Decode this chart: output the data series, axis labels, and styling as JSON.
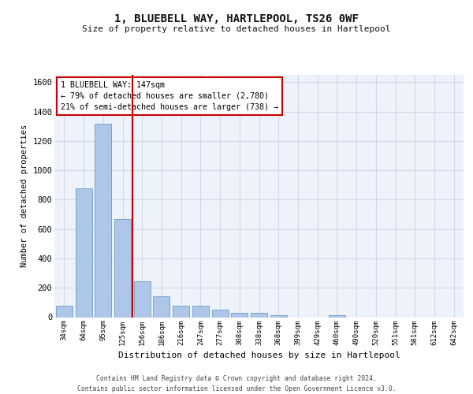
{
  "title_line1": "1, BLUEBELL WAY, HARTLEPOOL, TS26 0WF",
  "title_line2": "Size of property relative to detached houses in Hartlepool",
  "xlabel": "Distribution of detached houses by size in Hartlepool",
  "ylabel": "Number of detached properties",
  "categories": [
    "34sqm",
    "64sqm",
    "95sqm",
    "125sqm",
    "156sqm",
    "186sqm",
    "216sqm",
    "247sqm",
    "277sqm",
    "308sqm",
    "338sqm",
    "368sqm",
    "399sqm",
    "429sqm",
    "460sqm",
    "490sqm",
    "520sqm",
    "551sqm",
    "581sqm",
    "612sqm",
    "642sqm"
  ],
  "values": [
    80,
    880,
    1320,
    670,
    245,
    140,
    80,
    80,
    50,
    28,
    28,
    15,
    0,
    0,
    15,
    0,
    0,
    0,
    0,
    0,
    0
  ],
  "bar_color": "#aec6e8",
  "bar_edge_color": "#5a8fbc",
  "grid_color": "#d0d8e8",
  "background_color": "#eef2fa",
  "vline_x_index": 3.5,
  "vline_color": "#cc0000",
  "annotation_text": "1 BLUEBELL WAY: 147sqm\n← 79% of detached houses are smaller (2,780)\n21% of semi-detached houses are larger (738) →",
  "annotation_box_color": "#ffffff",
  "annotation_box_edge": "#cc0000",
  "ylim": [
    0,
    1650
  ],
  "yticks": [
    0,
    200,
    400,
    600,
    800,
    1000,
    1200,
    1400,
    1600
  ],
  "footer_line1": "Contains HM Land Registry data © Crown copyright and database right 2024.",
  "footer_line2": "Contains public sector information licensed under the Open Government Licence v3.0."
}
